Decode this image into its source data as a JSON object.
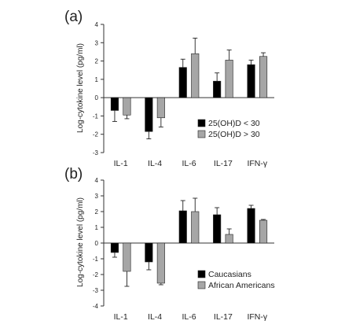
{
  "chart_data": [
    {
      "type": "bar",
      "panel_label": "(a)",
      "ylabel": "Log-cytokine level (pg/ml)",
      "ylim": [
        -3,
        4
      ],
      "yticks": [
        "4",
        "3",
        "2",
        "1",
        "0",
        "-1",
        "-2",
        "-3"
      ],
      "categories": [
        "IL-1",
        "IL-4",
        "IL-6",
        "IL-17",
        "IFN-γ"
      ],
      "legend_position": "bottom-right",
      "series": [
        {
          "name": "25(OH)D < 30",
          "color": "#000000",
          "values": [
            -0.7,
            -1.85,
            1.65,
            0.9,
            1.8
          ],
          "errors": [
            0.6,
            0.4,
            0.45,
            0.45,
            0.25
          ]
        },
        {
          "name": "25(OH)D > 30",
          "color": "#a6a6a6",
          "values": [
            -0.95,
            -1.1,
            2.4,
            2.05,
            2.25
          ],
          "errors": [
            0.2,
            0.5,
            0.85,
            0.55,
            0.2
          ]
        }
      ]
    },
    {
      "type": "bar",
      "panel_label": "(b)",
      "ylabel": "Log-cytokine level (pg/ml)",
      "ylim": [
        -4,
        4
      ],
      "yticks": [
        "4",
        "3",
        "2",
        "1",
        "0",
        "-1",
        "-2",
        "-3",
        "-4"
      ],
      "categories": [
        "IL-1",
        "IL-4",
        "IL-6",
        "IL-17",
        "IFN-γ"
      ],
      "legend_position": "bottom-right",
      "series": [
        {
          "name": "Caucasians",
          "color": "#000000",
          "values": [
            -0.6,
            -1.2,
            2.05,
            1.8,
            2.2
          ],
          "errors": [
            0.3,
            0.5,
            0.65,
            0.45,
            0.2
          ]
        },
        {
          "name": "African Americans",
          "color": "#a6a6a6",
          "values": [
            -1.8,
            -2.55,
            2.0,
            0.55,
            1.45
          ],
          "errors": [
            0.95,
            0.1,
            0.85,
            0.35,
            0.05
          ]
        }
      ]
    }
  ]
}
